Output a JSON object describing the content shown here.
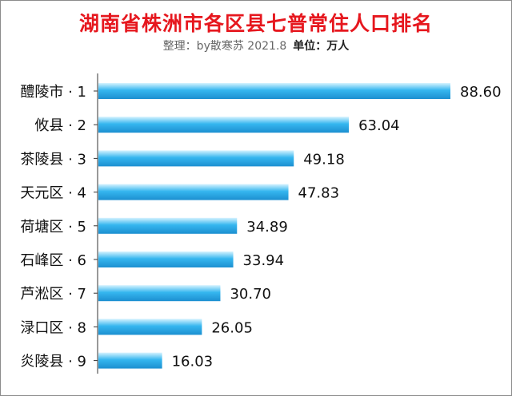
{
  "title": "湖南省株洲市各区县七普常住人口排名",
  "subtitle": {
    "credit": "整理：by散寒苏 2021.8",
    "unit": "单位：万人"
  },
  "colors": {
    "title": "#e6171e",
    "bar_light": "#d6f3ff",
    "bar_mid": "#35b6ef",
    "bar_dark": "#1c8fd0",
    "axis": "#333333"
  },
  "chart_data": {
    "type": "bar",
    "orientation": "horizontal",
    "categories": [
      "醴陵市 · 1",
      "攸县 · 2",
      "茶陵县 · 3",
      "天元区 · 4",
      "荷塘区 · 5",
      "石峰区 · 6",
      "芦淞区 · 7",
      "渌口区 · 8",
      "炎陵县 · 9"
    ],
    "values": [
      88.6,
      63.04,
      49.18,
      47.83,
      34.89,
      33.94,
      30.7,
      26.05,
      16.03
    ],
    "value_labels": [
      "88.60",
      "63.04",
      "49.18",
      "47.83",
      "34.89",
      "33.94",
      "30.70",
      "26.05",
      "16.03"
    ],
    "title": "湖南省株洲市各区县七普常住人口排名",
    "xlabel": "",
    "ylabel": "",
    "xlim": [
      0,
      100
    ],
    "grid": false,
    "legend": "none"
  }
}
